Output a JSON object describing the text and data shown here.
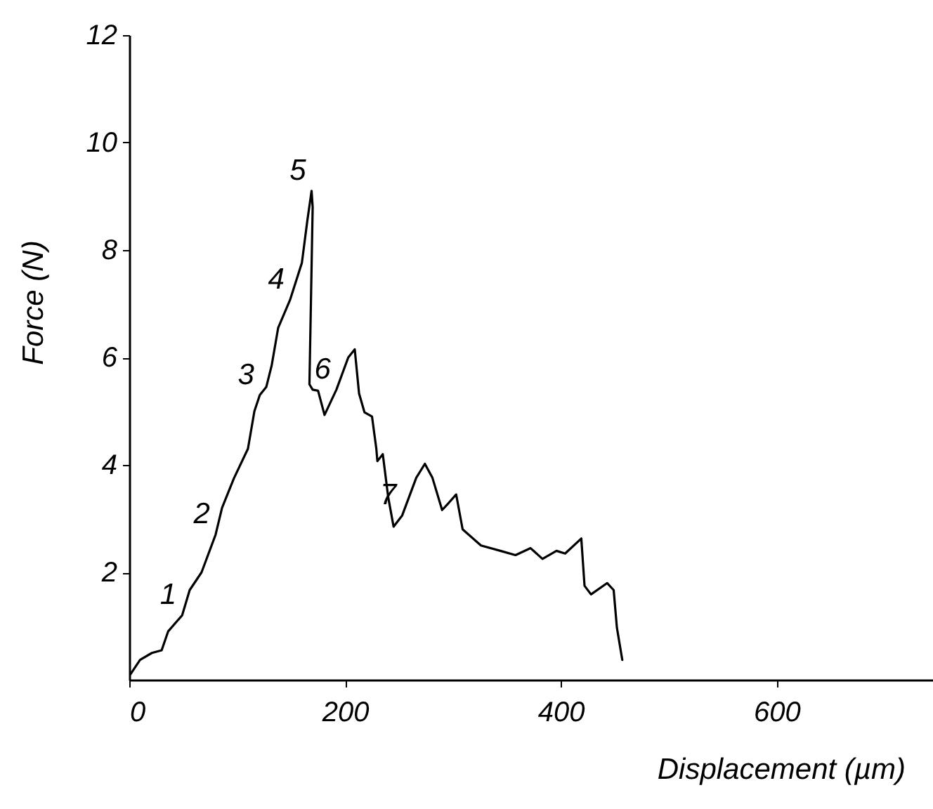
{
  "chart_data": {
    "type": "line",
    "xlabel": "Displacement (µm)",
    "ylabel": "Force (N)",
    "xlim": [
      0,
      745
    ],
    "ylim": [
      0,
      12
    ],
    "xticks": [
      0,
      200,
      400,
      600
    ],
    "yticks": [
      2,
      4,
      6,
      8,
      10,
      12
    ],
    "grid": false,
    "legend": false,
    "marker": "none",
    "line_style": "solid",
    "series": [
      {
        "color": "#000000",
        "x": [
          1,
          10,
          21,
          30,
          36,
          49,
          56,
          67,
          80,
          86,
          97,
          110,
          116,
          121,
          127,
          132,
          138,
          149,
          160,
          165,
          169,
          170,
          167,
          170,
          175,
          181,
          192,
          203,
          209,
          213,
          218,
          225,
          229,
          230,
          235,
          240,
          245,
          253,
          266,
          274,
          281,
          290,
          296,
          303,
          309,
          326,
          344,
          358,
          372,
          383,
          396,
          404,
          419,
          422,
          428,
          443,
          449,
          452,
          457
        ],
        "values": [
          0.1,
          0.37,
          0.5,
          0.55,
          0.9,
          1.2,
          1.67,
          2.0,
          2.7,
          3.2,
          3.75,
          4.3,
          5.0,
          5.3,
          5.45,
          5.85,
          6.55,
          7.07,
          7.76,
          8.54,
          9.1,
          8.8,
          5.5,
          5.4,
          5.38,
          4.93,
          5.4,
          6.0,
          6.15,
          5.33,
          4.98,
          4.9,
          4.3,
          4.07,
          4.2,
          3.4,
          2.85,
          3.06,
          3.76,
          4.02,
          3.76,
          3.16,
          3.29,
          3.45,
          2.8,
          2.5,
          2.4,
          2.32,
          2.45,
          2.25,
          2.4,
          2.35,
          2.63,
          1.75,
          1.59,
          1.8,
          1.67,
          0.97,
          0.37
        ]
      }
    ],
    "annotations": [
      {
        "text": "1",
        "x": 49,
        "y": 1.2
      },
      {
        "text": "2",
        "x": 80,
        "y": 2.7
      },
      {
        "text": "3",
        "x": 121,
        "y": 5.3
      },
      {
        "text": "4",
        "x": 149,
        "y": 7.07
      },
      {
        "text": "5",
        "x": 169,
        "y": 9.1
      },
      {
        "text": "6",
        "x": 192,
        "y": 5.4
      },
      {
        "text": "7",
        "x": 253,
        "y": 3.06
      }
    ]
  }
}
